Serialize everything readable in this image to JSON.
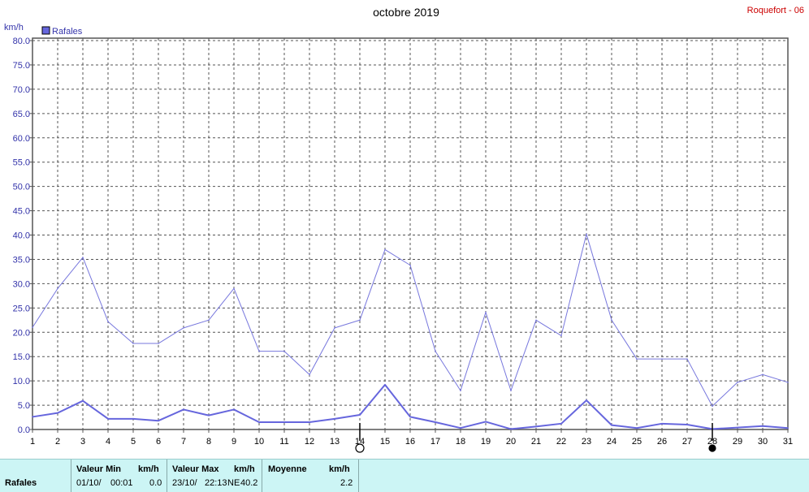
{
  "header": {
    "title": "octobre 2019",
    "station": "Roquefort - 06",
    "unit": "km/h"
  },
  "legend": {
    "label": "Rafales",
    "color": "#6666dd"
  },
  "chart_data": {
    "type": "line",
    "x": [
      1,
      2,
      3,
      4,
      5,
      6,
      7,
      8,
      9,
      10,
      11,
      12,
      13,
      14,
      15,
      16,
      17,
      18,
      19,
      20,
      21,
      22,
      23,
      24,
      25,
      26,
      27,
      28,
      29,
      30,
      31
    ],
    "ylim": [
      0,
      80
    ],
    "yticks": [
      "0.0",
      "5.0",
      "10.0",
      "15.0",
      "20.0",
      "25.0",
      "30.0",
      "35.0",
      "40.0",
      "45.0",
      "50.0",
      "55.0",
      "60.0",
      "65.0",
      "70.0",
      "75.0",
      "80.0"
    ],
    "ylabel": "km/h",
    "grid": true,
    "legend_position": "top-left",
    "series": [
      {
        "name": "Rafales",
        "color": "#7777dd",
        "values": [
          21.0,
          29.0,
          35.4,
          22.2,
          17.7,
          17.7,
          20.9,
          22.5,
          29.0,
          16.1,
          16.1,
          11.3,
          20.9,
          22.5,
          37.0,
          33.8,
          16.1,
          8.0,
          24.1,
          8.0,
          22.5,
          19.3,
          40.2,
          22.5,
          14.5,
          14.5,
          14.5,
          4.8,
          9.7,
          11.3,
          9.7
        ]
      },
      {
        "color": "#6666dd",
        "values": [
          2.6,
          3.4,
          5.9,
          2.2,
          2.2,
          1.8,
          4.1,
          2.9,
          4.1,
          1.5,
          1.5,
          1.5,
          2.2,
          3.0,
          9.2,
          2.6,
          1.5,
          0.3,
          1.6,
          0.1,
          0.6,
          1.2,
          6.0,
          0.9,
          0.3,
          1.2,
          1.0,
          0.1,
          0.4,
          0.7,
          0.3
        ]
      }
    ],
    "markers": [
      {
        "day": 14,
        "style": "open-circle"
      },
      {
        "day": 28,
        "style": "filled-circle"
      }
    ]
  },
  "footer": {
    "row_label": "Rafales",
    "min_header": "Valeur Min",
    "min_unit": "km/h",
    "min_date": "01/10/",
    "min_time": "00:01",
    "min_value": "0.0",
    "max_header": "Valeur Max",
    "max_unit": "km/h",
    "max_date": "23/10/",
    "max_time": "22:13",
    "max_dir": "NE",
    "max_value": "40.2",
    "avg_header": "Moyenne",
    "avg_unit": "km/h",
    "avg_value": "2.2"
  }
}
